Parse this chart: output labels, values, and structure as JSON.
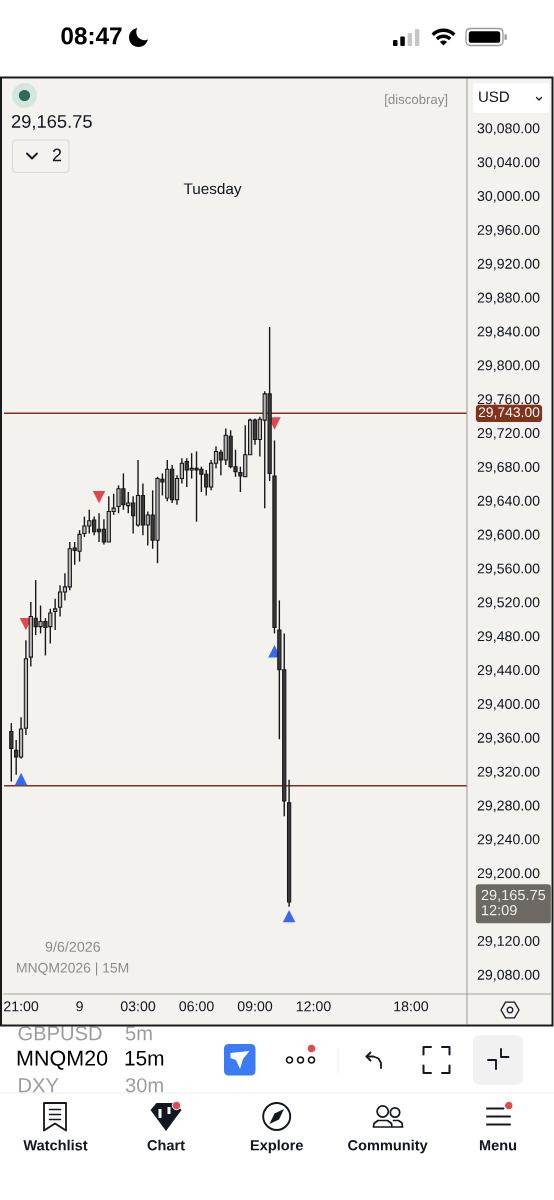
{
  "chart_data": {
    "type": "candlestick",
    "categories": [
      null,
      null,
      null,
      "21:00",
      null,
      null,
      null,
      null,
      null,
      null,
      null,
      null,
      null,
      null,
      null,
      "9",
      null,
      null,
      null,
      null,
      null,
      null,
      null,
      null,
      null,
      null,
      null,
      "03:00",
      null,
      null,
      null,
      null,
      null,
      null,
      null,
      null,
      null,
      null,
      null,
      "06:00",
      null,
      null,
      null,
      null,
      null,
      null,
      null,
      null,
      null,
      null,
      null,
      "09:00",
      null,
      null,
      null,
      null,
      null,
      null,
      null,
      null,
      null,
      null,
      null,
      "12:00",
      null,
      null,
      null,
      null,
      null,
      null,
      null,
      null,
      null,
      null,
      null,
      null,
      null,
      null,
      null,
      null,
      null,
      null,
      null,
      "18:00",
      null,
      null,
      null,
      null,
      null,
      null,
      null,
      null,
      null,
      null,
      null
    ],
    "ohlc": [
      null,
      [
        29367,
        29377,
        29308,
        29347
      ],
      [
        29345,
        29357,
        29316,
        29337
      ],
      [
        29337,
        29384,
        29335,
        29370
      ],
      [
        29371,
        29475,
        29363,
        29453
      ],
      [
        29455,
        29520,
        29444,
        29503
      ],
      [
        29501,
        29546,
        29481,
        29491
      ],
      [
        29491,
        29516,
        29483,
        29497
      ],
      [
        29497,
        29501,
        29457,
        29490
      ],
      [
        29491,
        29512,
        29471,
        29507
      ],
      [
        29509,
        29524,
        29487,
        29512
      ],
      [
        29514,
        29540,
        29503,
        29532
      ],
      [
        29532,
        29554,
        29522,
        29538
      ],
      [
        29538,
        29591,
        29534,
        29583
      ],
      [
        29584,
        29591,
        29564,
        29581
      ],
      [
        29580,
        29605,
        29568,
        29600
      ],
      [
        29601,
        29621,
        29597,
        29610
      ],
      [
        29610,
        29629,
        29601,
        29616
      ],
      [
        29617,
        29621,
        29599,
        29603
      ],
      [
        29606,
        29625,
        29591,
        29603
      ],
      [
        29606,
        29618,
        29588,
        29591
      ],
      [
        29591,
        29645,
        29591,
        29627
      ],
      [
        29627,
        29648,
        29623,
        29631
      ],
      [
        29633,
        29658,
        29625,
        29654
      ],
      [
        29654,
        29672,
        29629,
        29635
      ],
      [
        29634,
        29650,
        29625,
        29637
      ],
      [
        29637,
        29645,
        29601,
        29622
      ],
      [
        29611,
        29688,
        29609,
        29646
      ],
      [
        29646,
        29660,
        29599,
        29611
      ],
      [
        29611,
        29627,
        29587,
        29623
      ],
      [
        29623,
        29652,
        29583,
        29593
      ],
      [
        29593,
        29668,
        29566,
        29666
      ],
      [
        29665,
        29672,
        29646,
        29662
      ],
      [
        29643,
        29688,
        29639,
        29677
      ],
      [
        29677,
        29682,
        29637,
        29641
      ],
      [
        29641,
        29670,
        29635,
        29666
      ],
      [
        29666,
        29690,
        29660,
        29684
      ],
      [
        29686,
        29690,
        29656,
        29676
      ],
      [
        29676,
        29696,
        29666,
        29678
      ],
      [
        29678,
        29698,
        29615,
        29676
      ],
      [
        29677,
        29680,
        29650,
        29671
      ],
      [
        29671,
        29676,
        29646,
        29656
      ],
      [
        29656,
        29688,
        29652,
        29684
      ],
      [
        29684,
        29704,
        29678,
        29698
      ],
      [
        29697,
        29700,
        29670,
        29688
      ],
      [
        29688,
        29725,
        29682,
        29717
      ],
      [
        29716,
        29723,
        29678,
        29680
      ],
      [
        29680,
        29700,
        29668,
        29674
      ],
      [
        29673,
        29680,
        29650,
        29669
      ],
      [
        29668,
        29729,
        29668,
        29694
      ],
      [
        29694,
        29737,
        29694,
        29735
      ],
      [
        29735,
        29737,
        29706,
        29712
      ],
      [
        29712,
        29739,
        29692,
        29736
      ],
      [
        29735,
        29769,
        29631,
        29766
      ],
      [
        29766,
        29845,
        29663,
        29672
      ],
      [
        29669,
        29711,
        29483,
        29490
      ],
      [
        29487,
        29522,
        29358,
        29440
      ],
      [
        29440,
        29483,
        29267,
        29285
      ],
      [
        29283,
        29310,
        29160,
        29165.75
      ],
      null,
      null,
      null,
      null,
      null,
      null,
      null,
      null,
      null,
      null,
      null,
      null,
      null,
      null,
      null,
      null,
      null,
      null,
      null,
      null,
      null,
      null,
      null,
      null,
      null,
      null,
      null,
      null,
      null,
      null,
      null,
      null,
      null,
      null,
      null,
      null
    ],
    "colors": [
      null,
      "#3a3a3a",
      "#3a3a3a",
      "#b5b5b5",
      "#b5b5b5",
      "#b5b5b5",
      "#3a3a3a",
      "#b5b5b5",
      "#3a3a3a",
      "#b5b5b5",
      "#b5b5b5",
      "#b5b5b5",
      "#b5b5b5",
      "#b5b5b5",
      "#3a3a3a",
      "#b5b5b5",
      "#b5b5b5",
      "#b5b5b5",
      "#3a3a3a",
      "#3a3a3a",
      "#3a3a3a",
      "#b5b5b5",
      "#b5b5b5",
      "#b5b5b5",
      "#3a3a3a",
      "#b5b5b5",
      "#3a3a3a",
      "#b5b5b5",
      "#3a3a3a",
      "#b5b5b5",
      "#3a3a3a",
      "#b5b5b5",
      "#3a3a3a",
      "#b5b5b5",
      "#3a3a3a",
      "#b5b5b5",
      "#b5b5b5",
      "#3a3a3a",
      "#b5b5b5",
      "#3a3a3a",
      "#3a3a3a",
      "#3a3a3a",
      "#b5b5b5",
      "#b5b5b5",
      "#3a3a3a",
      "#b5b5b5",
      "#3a3a3a",
      "#3a3a3a",
      "#3a3a3a",
      "#b5b5b5",
      "#b5b5b5",
      "#3a3a3a",
      "#b5b5b5",
      "#b5b5b5",
      "#3a3a3a",
      "#3a3a3a",
      "#3a3a3a",
      "#3a3a3a",
      "#3a3a3a",
      null,
      null,
      null,
      null,
      null,
      null,
      null,
      null,
      null,
      null,
      null,
      null,
      null,
      null,
      null,
      null,
      null,
      null,
      null,
      null,
      null,
      null,
      null,
      null,
      null,
      null,
      null,
      null,
      null,
      null,
      null,
      null,
      null,
      null,
      null,
      null
    ],
    "series": [
      {
        "type": "scatter",
        "color": "#e2474f",
        "values": [
          null,
          null,
          null,
          null,
          29494,
          null,
          null,
          null,
          null,
          null,
          null,
          null,
          null,
          null,
          null,
          null,
          null,
          null,
          null,
          29644,
          null,
          null,
          null,
          null,
          null,
          null,
          null,
          null,
          null,
          null,
          null,
          null,
          null,
          null,
          null,
          null,
          null,
          null,
          null,
          null,
          null,
          null,
          null,
          null,
          null,
          null,
          null,
          null,
          null,
          null,
          null,
          null,
          null,
          null,
          null,
          29731,
          null,
          null,
          null,
          null,
          null,
          null,
          null,
          null,
          null,
          null,
          null,
          null,
          null,
          null,
          null,
          null,
          null,
          null,
          null,
          null,
          null,
          null,
          null,
          null,
          null,
          null,
          null,
          null,
          null,
          null,
          null,
          null,
          null,
          null,
          null,
          null,
          null,
          null,
          null
        ]
      },
      {
        "type": "scatter",
        "color": "#3b66f0",
        "values": [
          null,
          null,
          null,
          29311,
          null,
          null,
          null,
          null,
          null,
          null,
          null,
          null,
          null,
          null,
          null,
          null,
          null,
          null,
          null,
          null,
          null,
          null,
          null,
          null,
          null,
          null,
          null,
          null,
          null,
          null,
          null,
          null,
          null,
          null,
          null,
          null,
          null,
          null,
          null,
          null,
          null,
          null,
          null,
          null,
          null,
          null,
          null,
          null,
          null,
          null,
          null,
          null,
          null,
          null,
          null,
          29462,
          null,
          null,
          29149,
          null,
          null,
          null,
          null,
          null,
          null,
          null,
          null,
          null,
          null,
          null,
          null,
          null,
          null,
          null,
          null,
          null,
          null,
          null,
          null,
          null,
          null,
          null,
          null,
          null,
          null,
          null,
          null,
          null,
          null,
          null,
          null,
          null,
          null,
          null,
          null
        ]
      }
    ],
    "marker": "triangle",
    "ylim": [
      29057,
      30138
    ],
    "yticks": [
      {
        "value": 30080,
        "label": "30,080.00"
      },
      {
        "value": 30040,
        "label": "30,040.00"
      },
      {
        "value": 30000,
        "label": "30,000.00"
      },
      {
        "value": 29960,
        "label": "29,960.00"
      },
      {
        "value": 29920,
        "label": "29,920.00"
      },
      {
        "value": 29880,
        "label": "29,880.00"
      },
      {
        "value": 29840,
        "label": "29,840.00"
      },
      {
        "value": 29800,
        "label": "29,800.00"
      },
      {
        "value": 29760,
        "label": "29,760.00"
      },
      {
        "value": 29720,
        "label": "29,720.00"
      },
      {
        "value": 29680,
        "label": "29,680.00"
      },
      {
        "value": 29640,
        "label": "29,640.00"
      },
      {
        "value": 29600,
        "label": "29,600.00"
      },
      {
        "value": 29560,
        "label": "29,560.00"
      },
      {
        "value": 29520,
        "label": "29,520.00"
      },
      {
        "value": 29480,
        "label": "29,480.00"
      },
      {
        "value": 29440,
        "label": "29,440.00"
      },
      {
        "value": 29400,
        "label": "29,400.00"
      },
      {
        "value": 29360,
        "label": "29,360.00"
      },
      {
        "value": 29320,
        "label": "29,320.00"
      },
      {
        "value": 29280,
        "label": "29,280.00"
      },
      {
        "value": 29240,
        "label": "29,240.00"
      },
      {
        "value": 29200,
        "label": "29,200.00"
      },
      {
        "value": 29120,
        "label": "29,120.00"
      },
      {
        "value": 29080,
        "label": "29,080.00"
      }
    ],
    "ref_lines": [
      {
        "axis": "y",
        "value": 29743,
        "label": "29,743.00",
        "color": "#80331b"
      },
      {
        "axis": "y",
        "value": 29303,
        "color": "#80331b"
      }
    ],
    "annotations": [
      "08:47",
      "29,165.75",
      "[discobray]",
      "USD",
      "2",
      "Tuesday",
      "9/6/2026",
      "MNQM2026 | 15M",
      "GBPUSD",
      "5m",
      "MNQM20",
      "15m",
      "DXY",
      "30m",
      "Watchlist",
      "Chart",
      "Explore",
      "Community",
      "Menu",
      "29,165.75\n12:09"
    ]
  }
}
